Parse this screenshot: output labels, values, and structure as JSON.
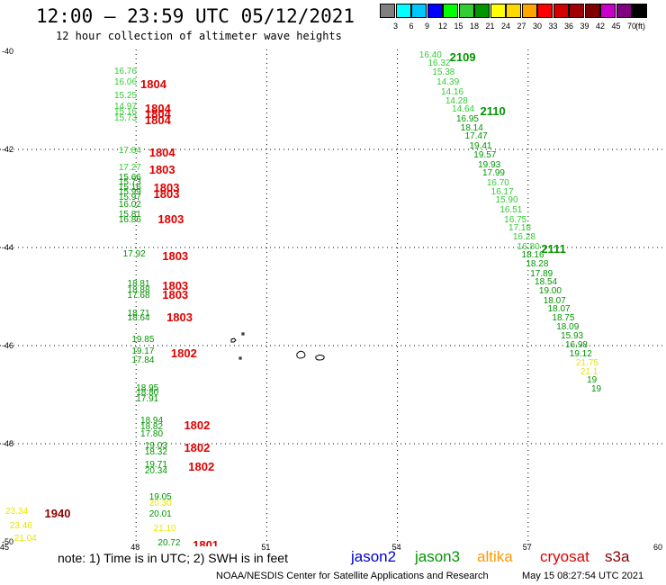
{
  "header": {
    "title": "12:00  –  23:59  UTC  05/12/2021",
    "subtitle": "12 hour collection of altimeter wave heights"
  },
  "legend": {
    "unit": "(ft)",
    "bins": [
      {
        "label": "",
        "color": "#808080"
      },
      {
        "label": "3",
        "color": "#00ffff"
      },
      {
        "label": "6",
        "color": "#00c8ff"
      },
      {
        "label": "9",
        "color": "#0000ff"
      },
      {
        "label": "12",
        "color": "#00ff00"
      },
      {
        "label": "15",
        "color": "#32cd32"
      },
      {
        "label": "18",
        "color": "#009600"
      },
      {
        "label": "21",
        "color": "#ffff00"
      },
      {
        "label": "24",
        "color": "#ffd700"
      },
      {
        "label": "27",
        "color": "#ffa500"
      },
      {
        "label": "30",
        "color": "#ff0000"
      },
      {
        "label": "33",
        "color": "#d20000"
      },
      {
        "label": "36",
        "color": "#a00000"
      },
      {
        "label": "39",
        "color": "#800000"
      },
      {
        "label": "42",
        "color": "#c800c8"
      },
      {
        "label": "45",
        "color": "#800080"
      },
      {
        "label": "70",
        "color": "#000000"
      }
    ]
  },
  "axes": {
    "lat_labels": [
      "-40",
      "-42",
      "-44",
      "-46",
      "-48",
      "-50"
    ],
    "lon_labels": [
      "45",
      "48",
      "51",
      "54",
      "57",
      "60"
    ]
  },
  "colors": {
    "light_green": "#32cd32",
    "green": "#009600",
    "yellow": "#e6e600",
    "red": "#e00000",
    "dark_red": "#8b0000",
    "jason2": "#0000cc",
    "jason3": "#009600",
    "altika": "#ff9900",
    "cryosat": "#e00000",
    "s3a": "#8b0000"
  },
  "chart_data": {
    "type": "scatter",
    "title": "12:00 – 23:59 UTC 05/12/2021",
    "subtitle": "12 hour collection of altimeter wave heights",
    "xlim": [
      45,
      60
    ],
    "ylim": [
      -50,
      -40
    ],
    "unit": "ft",
    "tracks": [
      {
        "satellite": "cryosat",
        "observations": [
          {
            "lon": 47.5,
            "lat": -40.33,
            "swh": "16.76",
            "color": "light_green"
          },
          {
            "lon": 47.5,
            "lat": -40.55,
            "swh": "16.06",
            "color": "light_green"
          },
          {
            "lon": 47.5,
            "lat": -40.83,
            "swh": "15.25",
            "color": "light_green"
          },
          {
            "lon": 47.5,
            "lat": -41.05,
            "swh": "14.97",
            "color": "light_green"
          },
          {
            "lon": 47.5,
            "lat": -41.15,
            "swh": "15.16",
            "color": "light_green"
          },
          {
            "lon": 47.5,
            "lat": -41.29,
            "swh": "15.73",
            "color": "light_green"
          },
          {
            "lon": 47.6,
            "lat": -41.95,
            "swh": "17.84",
            "color": "light_green"
          },
          {
            "lon": 47.6,
            "lat": -42.3,
            "swh": "17.27",
            "color": "light_green"
          },
          {
            "lon": 47.6,
            "lat": -42.49,
            "swh": "15.66",
            "color": "green"
          },
          {
            "lon": 47.6,
            "lat": -42.59,
            "swh": "15.73",
            "color": "green"
          },
          {
            "lon": 47.6,
            "lat": -42.69,
            "swh": "15.16",
            "color": "green"
          },
          {
            "lon": 47.6,
            "lat": -42.79,
            "swh": "15.99",
            "color": "green"
          },
          {
            "lon": 47.6,
            "lat": -42.89,
            "swh": "15.97",
            "color": "green"
          },
          {
            "lon": 47.6,
            "lat": -43.05,
            "swh": "16.02",
            "color": "green"
          },
          {
            "lon": 47.6,
            "lat": -43.25,
            "swh": "15.81",
            "color": "green"
          },
          {
            "lon": 47.6,
            "lat": -43.35,
            "swh": "16.86",
            "color": "green"
          },
          {
            "lon": 47.7,
            "lat": -44.05,
            "swh": "17.92",
            "color": "green"
          },
          {
            "lon": 47.8,
            "lat": -44.66,
            "swh": "18.81",
            "color": "green"
          },
          {
            "lon": 47.8,
            "lat": -44.79,
            "swh": "18.88",
            "color": "green"
          },
          {
            "lon": 47.8,
            "lat": -44.9,
            "swh": "17.68",
            "color": "green"
          },
          {
            "lon": 47.8,
            "lat": -45.27,
            "swh": "18.71",
            "color": "green"
          },
          {
            "lon": 47.8,
            "lat": -45.36,
            "swh": "18.64",
            "color": "green"
          },
          {
            "lon": 47.9,
            "lat": -45.8,
            "swh": "19.85",
            "color": "green"
          },
          {
            "lon": 47.9,
            "lat": -46.03,
            "swh": "19.17",
            "color": "green"
          },
          {
            "lon": 47.9,
            "lat": -46.22,
            "swh": "17.84",
            "color": "green"
          },
          {
            "lon": 48.0,
            "lat": -46.78,
            "swh": "18.95",
            "color": "green"
          },
          {
            "lon": 48.0,
            "lat": -46.88,
            "swh": "18.80",
            "color": "green"
          },
          {
            "lon": 48.0,
            "lat": -47.0,
            "swh": "17.91",
            "color": "green"
          },
          {
            "lon": 48.1,
            "lat": -47.45,
            "swh": "18.94",
            "color": "green"
          },
          {
            "lon": 48.1,
            "lat": -47.57,
            "swh": "18.82",
            "color": "green"
          },
          {
            "lon": 48.1,
            "lat": -47.72,
            "swh": "17.80",
            "color": "green"
          },
          {
            "lon": 48.2,
            "lat": -47.97,
            "swh": "19.03",
            "color": "green"
          },
          {
            "lon": 48.2,
            "lat": -48.1,
            "swh": "18.32",
            "color": "green"
          },
          {
            "lon": 48.2,
            "lat": -48.35,
            "swh": "19.71",
            "color": "green"
          },
          {
            "lon": 48.2,
            "lat": -48.47,
            "swh": "20.34",
            "color": "green"
          },
          {
            "lon": 48.3,
            "lat": -49.0,
            "swh": "19.05",
            "color": "green"
          },
          {
            "lon": 48.3,
            "lat": -49.13,
            "swh": "20.30",
            "color": "yellow"
          },
          {
            "lon": 48.3,
            "lat": -49.35,
            "swh": "20.01",
            "color": "green"
          },
          {
            "lon": 48.4,
            "lat": -49.65,
            "swh": "21.10",
            "color": "yellow"
          },
          {
            "lon": 48.5,
            "lat": -49.95,
            "swh": "20.72",
            "color": "green"
          }
        ],
        "pass_labels": [
          {
            "lon": 48.1,
            "lat": -40.55,
            "text": "1804"
          },
          {
            "lon": 48.2,
            "lat": -41.05,
            "text": "1804"
          },
          {
            "lon": 48.2,
            "lat": -41.15,
            "text": "1804"
          },
          {
            "lon": 48.2,
            "lat": -41.29,
            "text": "1804"
          },
          {
            "lon": 48.3,
            "lat": -41.95,
            "text": "1804"
          },
          {
            "lon": 48.3,
            "lat": -42.3,
            "text": "1803"
          },
          {
            "lon": 48.4,
            "lat": -42.66,
            "text": "1803"
          },
          {
            "lon": 48.4,
            "lat": -42.79,
            "text": "1803"
          },
          {
            "lon": 48.5,
            "lat": -43.3,
            "text": "1803"
          },
          {
            "lon": 48.6,
            "lat": -44.05,
            "text": "1803"
          },
          {
            "lon": 48.6,
            "lat": -44.66,
            "text": "1803"
          },
          {
            "lon": 48.6,
            "lat": -44.85,
            "text": "1803"
          },
          {
            "lon": 48.7,
            "lat": -45.3,
            "text": "1803"
          },
          {
            "lon": 48.8,
            "lat": -46.03,
            "text": "1802"
          },
          {
            "lon": 49.1,
            "lat": -47.5,
            "text": "1802"
          },
          {
            "lon": 49.1,
            "lat": -47.97,
            "text": "1802"
          },
          {
            "lon": 49.2,
            "lat": -48.35,
            "text": "1802"
          },
          {
            "lon": 49.3,
            "lat": -49.95,
            "text": "1801"
          }
        ]
      },
      {
        "satellite": "s3a",
        "observations": [
          {
            "lon": 45.0,
            "lat": -49.3,
            "swh": "23.34",
            "color": "yellow"
          },
          {
            "lon": 45.1,
            "lat": -49.6,
            "swh": "23.46",
            "color": "yellow"
          },
          {
            "lon": 45.2,
            "lat": -49.85,
            "swh": "21.04",
            "color": "yellow"
          },
          {
            "lon": 45.4,
            "lat": -50.1,
            "swh": "20.40",
            "color": "green"
          }
        ],
        "pass_labels": [
          {
            "lon": 45.9,
            "lat": -49.3,
            "text": "1940"
          }
        ]
      },
      {
        "satellite": "jason3",
        "observations": [
          {
            "lon": 54.5,
            "lat": -40.0,
            "swh": "16.40",
            "color": "light_green"
          },
          {
            "lon": 54.7,
            "lat": -40.17,
            "swh": "16.32",
            "color": "light_green"
          },
          {
            "lon": 54.8,
            "lat": -40.35,
            "swh": "15.38",
            "color": "light_green"
          },
          {
            "lon": 54.9,
            "lat": -40.55,
            "swh": "14.39",
            "color": "light_green"
          },
          {
            "lon": 55.0,
            "lat": -40.75,
            "swh": "14.16",
            "color": "light_green"
          },
          {
            "lon": 55.1,
            "lat": -40.93,
            "swh": "14.28",
            "color": "light_green"
          },
          {
            "lon": 55.25,
            "lat": -41.1,
            "swh": "14.64",
            "color": "light_green"
          },
          {
            "lon": 55.35,
            "lat": -41.3,
            "swh": "16.95",
            "color": "green"
          },
          {
            "lon": 55.45,
            "lat": -41.48,
            "swh": "18.14",
            "color": "green"
          },
          {
            "lon": 55.55,
            "lat": -41.65,
            "swh": "17.47",
            "color": "green"
          },
          {
            "lon": 55.65,
            "lat": -41.85,
            "swh": "19.41",
            "color": "green"
          },
          {
            "lon": 55.75,
            "lat": -42.03,
            "swh": "19.57",
            "color": "green"
          },
          {
            "lon": 55.85,
            "lat": -42.23,
            "swh": "19.93",
            "color": "green"
          },
          {
            "lon": 55.95,
            "lat": -42.41,
            "swh": "17.99",
            "color": "green"
          },
          {
            "lon": 56.05,
            "lat": -42.6,
            "swh": "16.70",
            "color": "light_green"
          },
          {
            "lon": 56.15,
            "lat": -42.78,
            "swh": "16.17",
            "color": "light_green"
          },
          {
            "lon": 56.25,
            "lat": -42.95,
            "swh": "15.90",
            "color": "light_green"
          },
          {
            "lon": 56.35,
            "lat": -43.15,
            "swh": "16.51",
            "color": "light_green"
          },
          {
            "lon": 56.45,
            "lat": -43.35,
            "swh": "16.75",
            "color": "light_green"
          },
          {
            "lon": 56.55,
            "lat": -43.52,
            "swh": "17.18",
            "color": "light_green"
          },
          {
            "lon": 56.65,
            "lat": -43.7,
            "swh": "16.28",
            "color": "light_green"
          },
          {
            "lon": 56.75,
            "lat": -43.9,
            "swh": "16.80",
            "color": "light_green"
          },
          {
            "lon": 56.85,
            "lat": -44.08,
            "swh": "18.16",
            "color": "green"
          },
          {
            "lon": 56.95,
            "lat": -44.25,
            "swh": "18.28",
            "color": "green"
          },
          {
            "lon": 57.05,
            "lat": -44.45,
            "swh": "17.89",
            "color": "green"
          },
          {
            "lon": 57.15,
            "lat": -44.63,
            "swh": "18.54",
            "color": "green"
          },
          {
            "lon": 57.25,
            "lat": -44.8,
            "swh": "19.00",
            "color": "green"
          },
          {
            "lon": 57.35,
            "lat": -45.0,
            "swh": "18.07",
            "color": "green"
          },
          {
            "lon": 57.45,
            "lat": -45.18,
            "swh": "18.07",
            "color": "green"
          },
          {
            "lon": 57.55,
            "lat": -45.35,
            "swh": "18.75",
            "color": "green"
          },
          {
            "lon": 57.65,
            "lat": -45.55,
            "swh": "18.09",
            "color": "green"
          },
          {
            "lon": 57.75,
            "lat": -45.73,
            "swh": "15.93",
            "color": "green"
          },
          {
            "lon": 57.85,
            "lat": -45.9,
            "swh": "16.98",
            "color": "green"
          },
          {
            "lon": 57.95,
            "lat": -46.1,
            "swh": "19.12",
            "color": "green"
          },
          {
            "lon": 58.1,
            "lat": -46.28,
            "swh": "21.75",
            "color": "yellow"
          },
          {
            "lon": 58.2,
            "lat": -46.45,
            "swh": "21.1",
            "color": "yellow"
          },
          {
            "lon": 58.35,
            "lat": -46.63,
            "swh": "19",
            "color": "green"
          },
          {
            "lon": 58.45,
            "lat": -46.8,
            "swh": "19",
            "color": "green"
          }
        ],
        "pass_labels": [
          {
            "lon": 55.2,
            "lat": -40.0,
            "text": "2109"
          },
          {
            "lon": 55.9,
            "lat": -41.1,
            "text": "2110"
          },
          {
            "lon": 57.3,
            "lat": -43.9,
            "text": "2111"
          }
        ]
      }
    ]
  },
  "footer": {
    "note": "note:  1) Time is in UTC; 2) SWH is in feet",
    "satellites": [
      {
        "name": "jason2",
        "color": "jason2"
      },
      {
        "name": "jason3",
        "color": "jason3"
      },
      {
        "name": "altika",
        "color": "altika"
      },
      {
        "name": "cryosat",
        "color": "cryosat"
      },
      {
        "name": "s3a",
        "color": "s3a"
      }
    ],
    "credit": "NOAA/NESDIS Center for Satellite Applications and Research",
    "timestamp": "May 15 08:27:54 UTC 2021"
  }
}
